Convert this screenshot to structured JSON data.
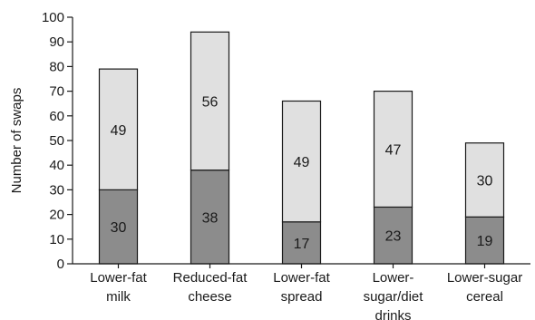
{
  "chart_data": {
    "type": "bar",
    "stacked": true,
    "title": "",
    "ylabel": "Number of swaps",
    "xlabel": "",
    "ylim": [
      0,
      100
    ],
    "yticks": [
      0,
      10,
      20,
      30,
      40,
      50,
      60,
      70,
      80,
      90,
      100
    ],
    "grid": false,
    "legend": "none",
    "categories": [
      [
        "Lower-fat",
        "milk"
      ],
      [
        "Reduced-fat",
        "cheese"
      ],
      [
        "Lower-fat",
        "spread"
      ],
      [
        "Lower-",
        "sugar/diet",
        "drinks"
      ],
      [
        "Lower-sugar",
        "cereal"
      ]
    ],
    "series": [
      {
        "values": [
          30,
          38,
          17,
          23,
          19
        ],
        "color": "#8c8c8c"
      },
      {
        "values": [
          49,
          56,
          49,
          47,
          30
        ],
        "color": "#e0e0e0"
      }
    ],
    "bar_stroke": "#1a1a1a"
  }
}
